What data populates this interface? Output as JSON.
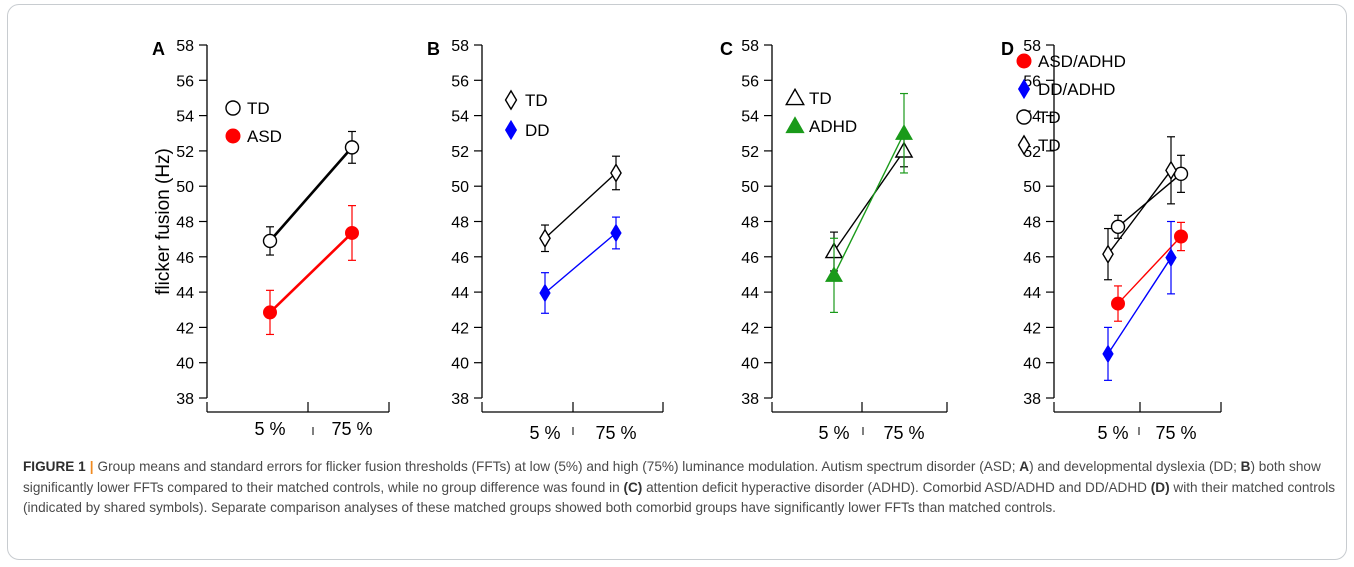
{
  "figure": {
    "ylabel": "flicker fusion (Hz)",
    "caption": {
      "label": "FIGURE 1",
      "separator": "|",
      "t1": "Group means and standard errors for flicker fusion thresholds (FFTs) at low (5%) and high (75%) luminance modulation. Autism spectrum disorder (ASD; ",
      "b1": "A",
      "t2": ") and developmental dyslexia (DD; ",
      "b2": "B",
      "t3": ") both show significantly lower FFTs compared to their matched controls, while no group difference was found in ",
      "b3": "(C)",
      "t4": " attention deficit hyperactive disorder (ADHD). Comorbid ASD/ADHD and DD/ADHD ",
      "b4": "(D)",
      "t5": " with their matched controls (indicated by shared symbols). Separate comparison analyses of these matched groups showed both comorbid groups have significantly lower FFTs than matched controls."
    }
  },
  "chart_data": [
    {
      "type": "line",
      "panel": "A",
      "categories": [
        "5 %",
        "75 %"
      ],
      "ylabel": "flicker fusion (Hz)",
      "ylim": [
        38,
        58
      ],
      "yticks": [
        38,
        40,
        42,
        44,
        46,
        48,
        50,
        52,
        54,
        56,
        58
      ],
      "grid": false,
      "legend": "top-left",
      "series": [
        {
          "name": "TD",
          "marker": "circle-open",
          "color": "#000000",
          "values": [
            46.9,
            52.2
          ],
          "err": [
            0.8,
            0.9
          ]
        },
        {
          "name": "ASD",
          "marker": "circle-filled",
          "color": "#ff0000",
          "values": [
            42.85,
            47.35
          ],
          "err": [
            1.25,
            1.55
          ]
        }
      ]
    },
    {
      "type": "line",
      "panel": "B",
      "categories": [
        "5 %",
        "75 %"
      ],
      "ylim": [
        38,
        58
      ],
      "yticks": [
        38,
        40,
        42,
        44,
        46,
        48,
        50,
        52,
        54,
        56,
        58
      ],
      "grid": false,
      "legend": "top-left",
      "series": [
        {
          "name": "TD",
          "marker": "diamond-open",
          "color": "#000000",
          "values": [
            47.05,
            50.75
          ],
          "err": [
            0.75,
            0.95
          ]
        },
        {
          "name": "DD",
          "marker": "diamond-filled",
          "color": "#0000ff",
          "values": [
            43.95,
            47.35
          ],
          "err": [
            1.15,
            0.9
          ]
        }
      ]
    },
    {
      "type": "line",
      "panel": "C",
      "categories": [
        "5 %",
        "75 %"
      ],
      "ylim": [
        38,
        58
      ],
      "yticks": [
        38,
        40,
        42,
        44,
        46,
        48,
        50,
        52,
        54,
        56,
        58
      ],
      "grid": false,
      "legend": "top-left",
      "series": [
        {
          "name": "TD",
          "marker": "triangle-open",
          "color": "#000000",
          "values": [
            46.3,
            52.0
          ],
          "err": [
            1.1,
            0.9
          ]
        },
        {
          "name": "ADHD",
          "marker": "triangle-filled",
          "color": "#1a9a1a",
          "values": [
            44.95,
            53.0
          ],
          "err": [
            2.1,
            2.25
          ]
        }
      ]
    },
    {
      "type": "line",
      "panel": "D",
      "categories": [
        "5 %",
        "75 %"
      ],
      "ylim": [
        38,
        58
      ],
      "yticks": [
        38,
        40,
        42,
        44,
        46,
        48,
        50,
        52,
        54,
        56,
        58
      ],
      "grid": false,
      "legend": "top-left",
      "series": [
        {
          "name": "ASD/ADHD",
          "marker": "circle-filled",
          "color": "#ff0000",
          "values": [
            43.35,
            47.15
          ],
          "err": [
            1.0,
            0.8
          ],
          "offset": 1
        },
        {
          "name": "DD/ADHD",
          "marker": "diamond-filled",
          "color": "#0000ff",
          "values": [
            40.5,
            45.95
          ],
          "err": [
            1.5,
            2.05
          ],
          "offset": -1
        },
        {
          "name": "TD",
          "marker": "circle-open",
          "color": "#000000",
          "values": [
            47.7,
            50.7
          ],
          "err": [
            0.65,
            1.05
          ],
          "offset": 1
        },
        {
          "name": "TD",
          "marker": "diamond-open",
          "color": "#000000",
          "values": [
            46.15,
            50.9
          ],
          "err": [
            1.45,
            1.9
          ],
          "offset": -1
        }
      ]
    }
  ]
}
